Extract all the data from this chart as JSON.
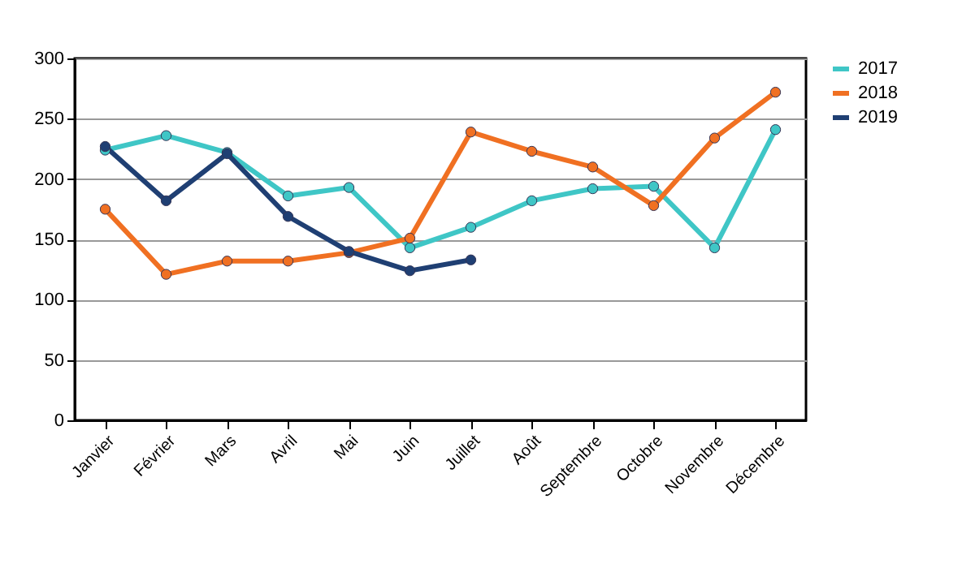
{
  "chart_data": {
    "type": "line",
    "categories": [
      "Janvier",
      "Février",
      "Mars",
      "Avril",
      "Mai",
      "Juin",
      "Juillet",
      "Août",
      "Septembre",
      "Octobre",
      "Novembre",
      "Décembre"
    ],
    "series": [
      {
        "name": "2017",
        "color": "#3fc6c6",
        "values": [
          224,
          236,
          222,
          186,
          193,
          143,
          160,
          182,
          192,
          194,
          143,
          241
        ]
      },
      {
        "name": "2018",
        "color": "#f07022",
        "values": [
          175,
          121,
          132,
          132,
          139,
          151,
          239,
          223,
          210,
          178,
          234,
          272
        ]
      },
      {
        "name": "2019",
        "color": "#1f3f73",
        "values": [
          227,
          182,
          221,
          169,
          140,
          124,
          133,
          null,
          null,
          null,
          null,
          null
        ]
      }
    ],
    "ylim": [
      0,
      300
    ],
    "yticks": [
      0,
      50,
      100,
      150,
      200,
      250,
      300
    ],
    "grid": "y",
    "legend": "right",
    "marker": "circle",
    "line_style": "solid"
  }
}
